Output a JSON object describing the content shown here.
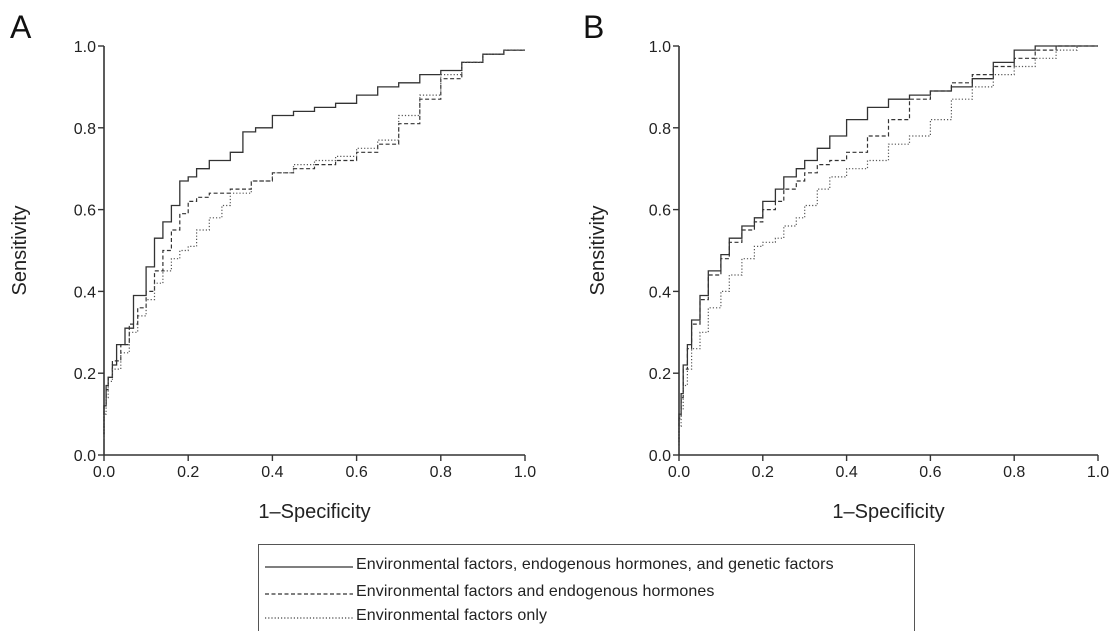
{
  "colors": {
    "line": "#333333",
    "axis": "#333333"
  },
  "legend": {
    "items": [
      {
        "label": "Environmental factors, endogenous hormones, and genetic factors",
        "style": "solid"
      },
      {
        "label": "Environmental factors and endogenous hormones",
        "style": "dashed"
      },
      {
        "label": "Environmental factors only",
        "style": "dotted"
      }
    ]
  },
  "chart_data": [
    {
      "type": "line",
      "panel_label": "A",
      "xlabel": "1–Specificity",
      "ylabel": "Sensitivity",
      "xlim": [
        0,
        1
      ],
      "ylim": [
        0,
        1
      ],
      "xticks": [
        "0.0",
        "0.2",
        "0.4",
        "0.6",
        "0.8",
        "1.0"
      ],
      "yticks": [
        "0.0",
        "0.2",
        "0.4",
        "0.6",
        "0.8",
        "1.0"
      ],
      "grid": false,
      "series": [
        {
          "name": "Environmental factors, endogenous hormones, and genetic factors",
          "style": "solid",
          "x": [
            0,
            0.005,
            0.01,
            0.02,
            0.03,
            0.05,
            0.07,
            0.1,
            0.12,
            0.14,
            0.16,
            0.18,
            0.2,
            0.22,
            0.25,
            0.3,
            0.33,
            0.36,
            0.4,
            0.45,
            0.5,
            0.55,
            0.6,
            0.65,
            0.7,
            0.75,
            0.8,
            0.85,
            0.9,
            0.95,
            1.0
          ],
          "y": [
            0.05,
            0.12,
            0.17,
            0.19,
            0.22,
            0.27,
            0.31,
            0.39,
            0.46,
            0.53,
            0.57,
            0.61,
            0.67,
            0.68,
            0.7,
            0.72,
            0.74,
            0.79,
            0.8,
            0.83,
            0.84,
            0.85,
            0.86,
            0.88,
            0.9,
            0.91,
            0.93,
            0.94,
            0.96,
            0.98,
            0.99
          ]
        },
        {
          "name": "Environmental factors and endogenous hormones",
          "style": "dashed",
          "x": [
            0,
            0.005,
            0.01,
            0.02,
            0.04,
            0.06,
            0.08,
            0.1,
            0.12,
            0.14,
            0.16,
            0.18,
            0.2,
            0.22,
            0.25,
            0.3,
            0.35,
            0.4,
            0.45,
            0.5,
            0.55,
            0.6,
            0.65,
            0.7,
            0.75,
            0.8,
            0.85,
            0.9,
            0.95,
            1.0
          ],
          "y": [
            0.05,
            0.12,
            0.16,
            0.19,
            0.23,
            0.27,
            0.32,
            0.36,
            0.4,
            0.45,
            0.5,
            0.55,
            0.59,
            0.62,
            0.63,
            0.64,
            0.65,
            0.67,
            0.69,
            0.7,
            0.71,
            0.72,
            0.74,
            0.76,
            0.81,
            0.87,
            0.92,
            0.96,
            0.98,
            0.99
          ]
        },
        {
          "name": "Environmental factors only",
          "style": "dotted",
          "x": [
            0,
            0.005,
            0.01,
            0.02,
            0.04,
            0.06,
            0.08,
            0.1,
            0.12,
            0.14,
            0.16,
            0.18,
            0.2,
            0.22,
            0.25,
            0.28,
            0.3,
            0.35,
            0.4,
            0.45,
            0.5,
            0.55,
            0.6,
            0.65,
            0.7,
            0.75,
            0.8,
            0.85,
            0.9,
            0.95,
            1.0
          ],
          "y": [
            0.04,
            0.1,
            0.14,
            0.18,
            0.21,
            0.25,
            0.3,
            0.34,
            0.38,
            0.42,
            0.45,
            0.48,
            0.5,
            0.51,
            0.55,
            0.58,
            0.61,
            0.64,
            0.67,
            0.69,
            0.71,
            0.72,
            0.73,
            0.75,
            0.77,
            0.83,
            0.88,
            0.93,
            0.96,
            0.98,
            0.99
          ]
        }
      ]
    },
    {
      "type": "line",
      "panel_label": "B",
      "xlabel": "1–Specificity",
      "ylabel": "Sensitivity",
      "xlim": [
        0,
        1
      ],
      "ylim": [
        0,
        1
      ],
      "xticks": [
        "0.0",
        "0.2",
        "0.4",
        "0.6",
        "0.8",
        "1.0"
      ],
      "yticks": [
        "0.0",
        "0.2",
        "0.4",
        "0.6",
        "0.8",
        "1.0"
      ],
      "grid": false,
      "series": [
        {
          "name": "Environmental factors, endogenous hormones, and genetic factors",
          "style": "solid",
          "x": [
            0,
            0.005,
            0.01,
            0.02,
            0.03,
            0.05,
            0.07,
            0.1,
            0.12,
            0.15,
            0.18,
            0.2,
            0.23,
            0.25,
            0.28,
            0.3,
            0.33,
            0.36,
            0.4,
            0.45,
            0.5,
            0.55,
            0.6,
            0.65,
            0.7,
            0.75,
            0.8,
            0.85,
            0.9,
            0.95,
            1.0
          ],
          "y": [
            0.03,
            0.1,
            0.15,
            0.22,
            0.27,
            0.33,
            0.39,
            0.45,
            0.49,
            0.53,
            0.56,
            0.58,
            0.62,
            0.65,
            0.68,
            0.7,
            0.72,
            0.75,
            0.78,
            0.82,
            0.85,
            0.87,
            0.88,
            0.89,
            0.9,
            0.92,
            0.96,
            0.99,
            1.0,
            1.0,
            1.0
          ]
        },
        {
          "name": "Environmental factors and endogenous hormones",
          "style": "dashed",
          "x": [
            0,
            0.005,
            0.01,
            0.02,
            0.03,
            0.05,
            0.07,
            0.1,
            0.12,
            0.15,
            0.18,
            0.2,
            0.23,
            0.25,
            0.28,
            0.3,
            0.33,
            0.36,
            0.4,
            0.45,
            0.5,
            0.55,
            0.6,
            0.65,
            0.7,
            0.75,
            0.8,
            0.85,
            0.9,
            0.95,
            1.0
          ],
          "y": [
            0.02,
            0.09,
            0.14,
            0.21,
            0.26,
            0.32,
            0.38,
            0.44,
            0.48,
            0.52,
            0.55,
            0.57,
            0.6,
            0.62,
            0.65,
            0.67,
            0.69,
            0.71,
            0.72,
            0.74,
            0.78,
            0.82,
            0.87,
            0.89,
            0.91,
            0.93,
            0.95,
            0.97,
            0.99,
            1.0,
            1.0
          ]
        },
        {
          "name": "Environmental factors only",
          "style": "dotted",
          "x": [
            0,
            0.005,
            0.01,
            0.02,
            0.03,
            0.05,
            0.07,
            0.1,
            0.12,
            0.15,
            0.18,
            0.2,
            0.23,
            0.25,
            0.28,
            0.3,
            0.33,
            0.36,
            0.4,
            0.45,
            0.5,
            0.55,
            0.6,
            0.65,
            0.7,
            0.75,
            0.8,
            0.85,
            0.9,
            0.95,
            1.0
          ],
          "y": [
            0.02,
            0.07,
            0.11,
            0.17,
            0.21,
            0.26,
            0.3,
            0.36,
            0.4,
            0.44,
            0.48,
            0.51,
            0.52,
            0.53,
            0.56,
            0.58,
            0.61,
            0.65,
            0.68,
            0.7,
            0.72,
            0.76,
            0.78,
            0.82,
            0.87,
            0.9,
            0.93,
            0.95,
            0.97,
            0.99,
            1.0
          ]
        }
      ]
    }
  ]
}
